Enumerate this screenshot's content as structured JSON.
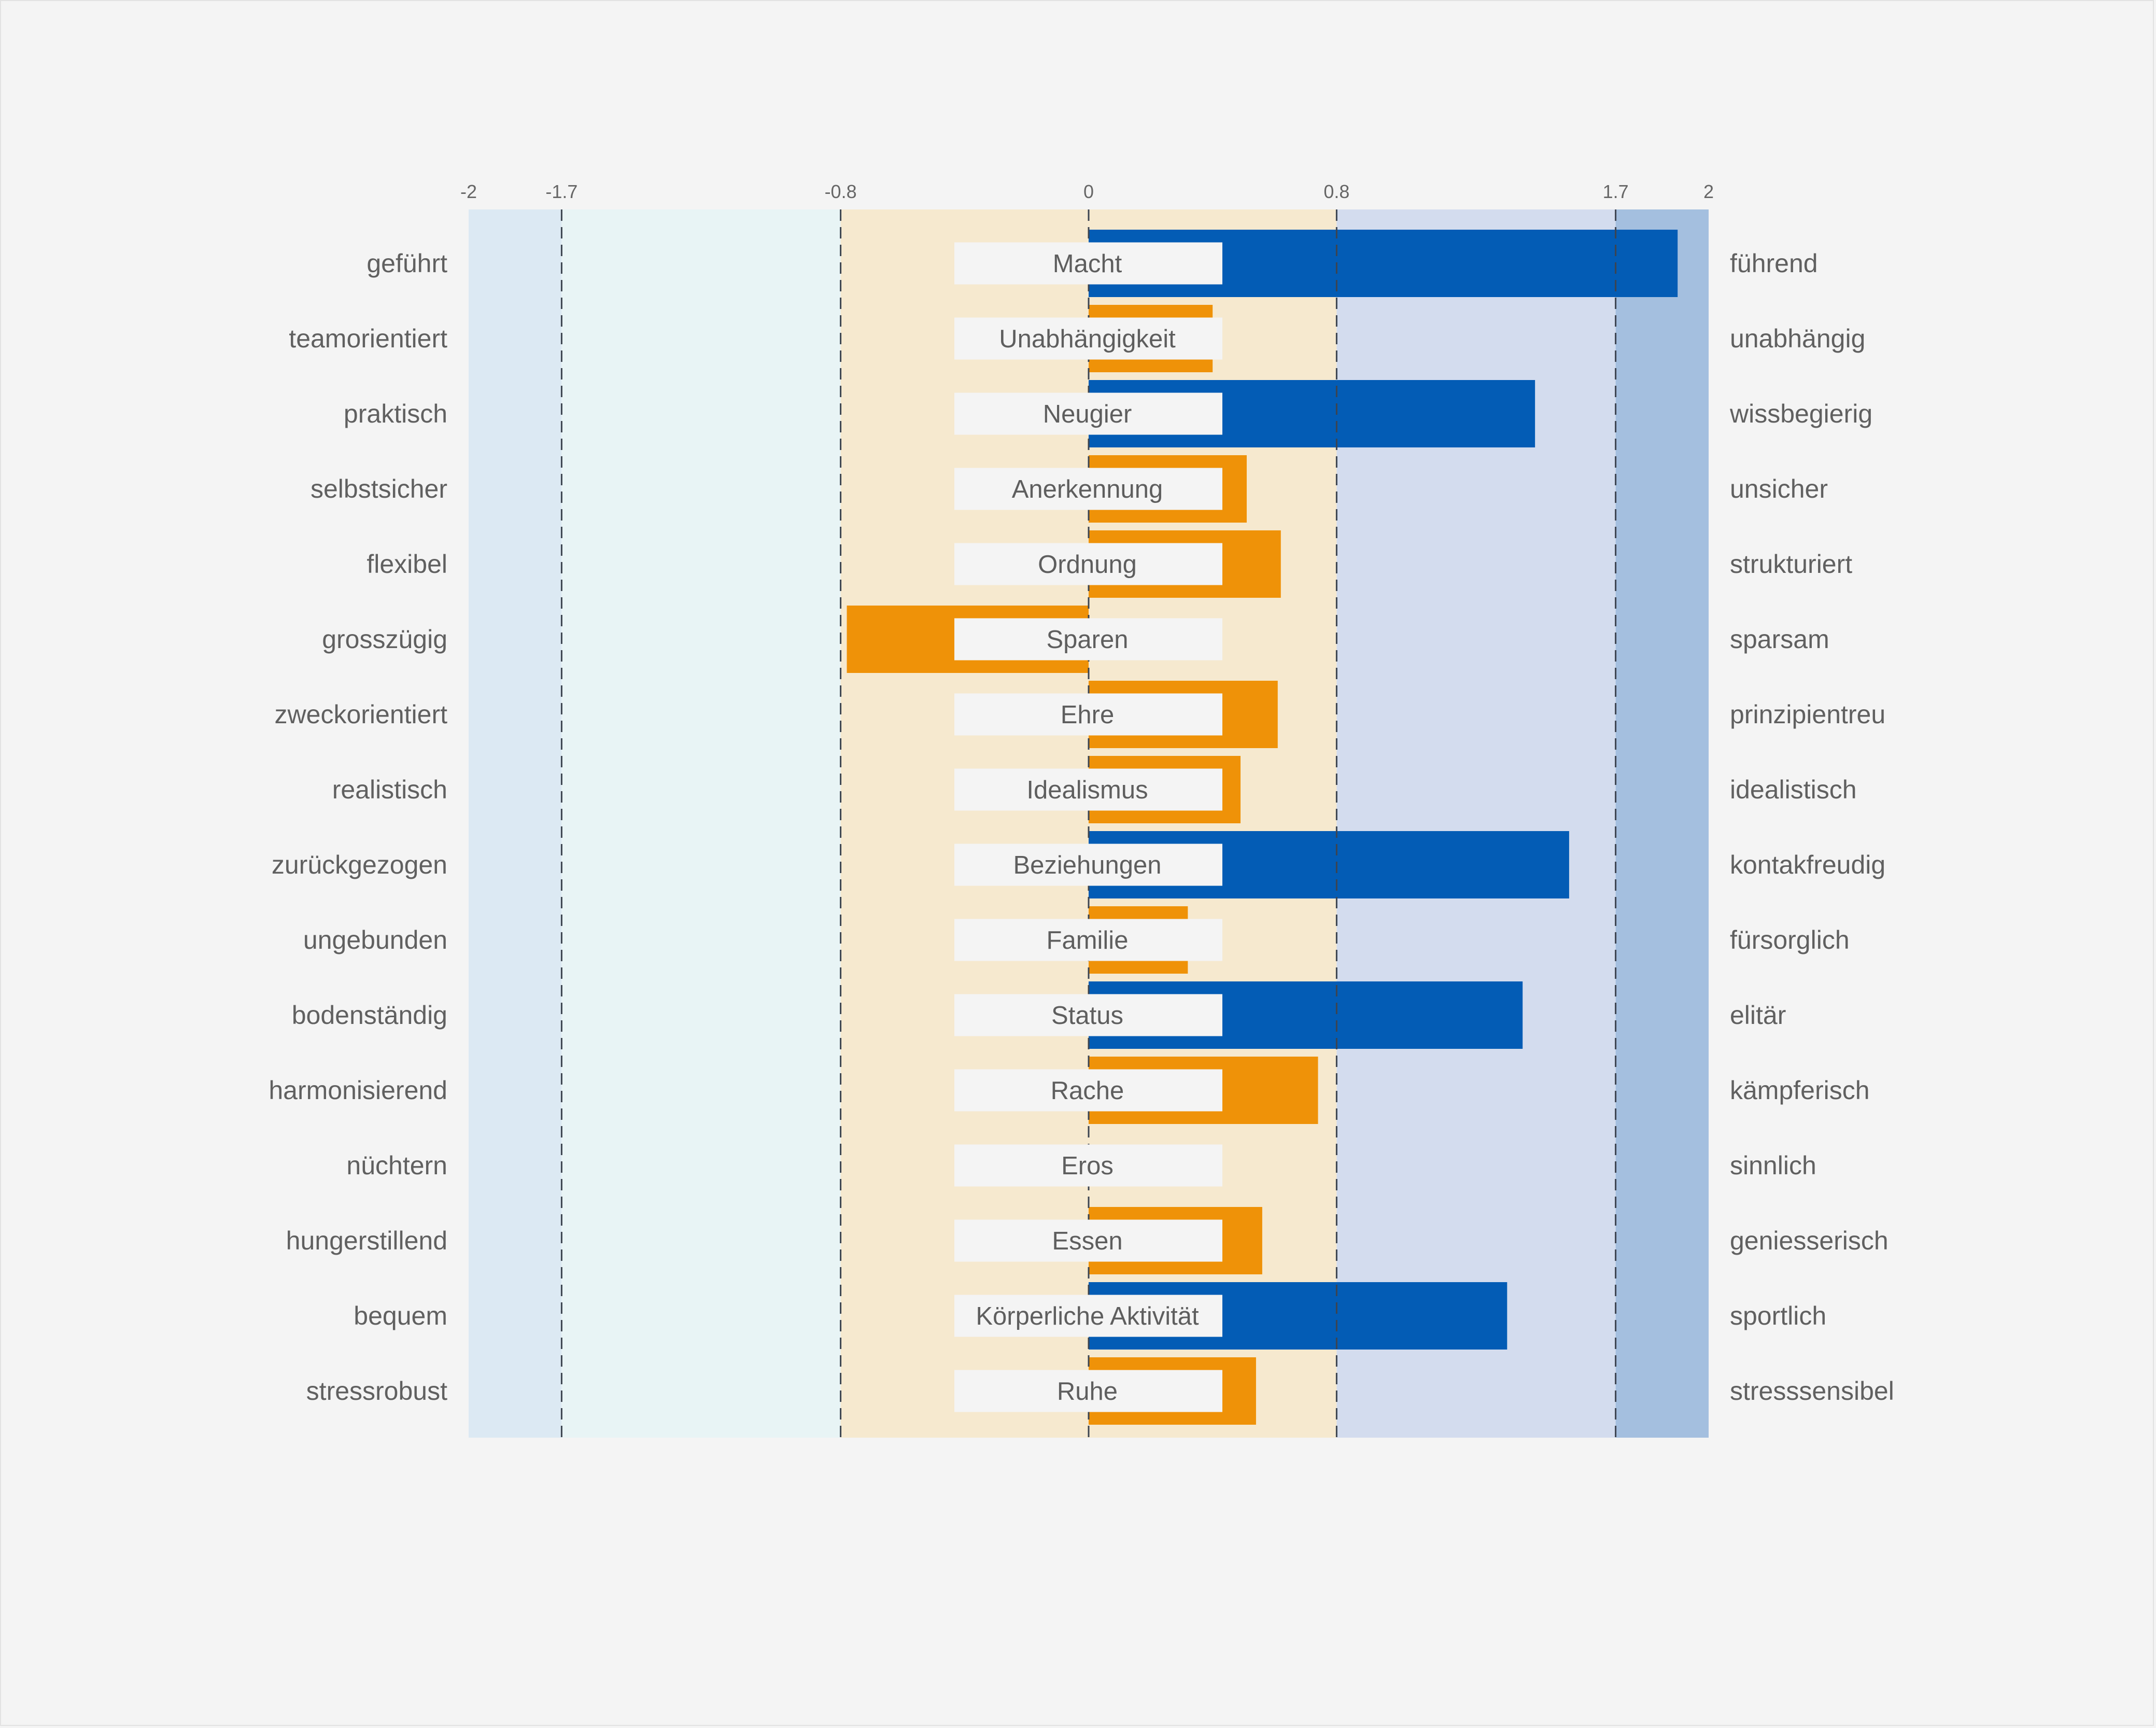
{
  "chart_data": {
    "type": "bar",
    "orientation": "horizontal",
    "title": "",
    "xlabel": "",
    "ylabel": "",
    "xlim": [
      -2,
      2
    ],
    "x_ticks": [
      {
        "value": -2,
        "label": "-2"
      },
      {
        "value": -1.7,
        "label": "-1.7"
      },
      {
        "value": -0.8,
        "label": "-0.8"
      },
      {
        "value": 0,
        "label": "0"
      },
      {
        "value": 0.8,
        "label": "0.8"
      },
      {
        "value": 1.7,
        "label": "1.7"
      },
      {
        "value": 2,
        "label": "2"
      }
    ],
    "dashed_lines_at": [
      -1.7,
      -0.8,
      0,
      0.8,
      1.7
    ],
    "bands": [
      {
        "from": -2,
        "to": -1.7,
        "color": "#dce9f3"
      },
      {
        "from": -1.7,
        "to": -0.8,
        "color": "#e8f4f5"
      },
      {
        "from": -0.8,
        "to": 0.8,
        "color": "#f6e9cf"
      },
      {
        "from": 0.8,
        "to": 1.7,
        "color": "#d3dcee"
      },
      {
        "from": 1.7,
        "to": 2,
        "color": "#a4bfdf"
      }
    ],
    "highlight_threshold": 0.8,
    "colors": {
      "strong": "#035cb5",
      "normal": "#ef9208",
      "label_box": "#f4f4f4",
      "text": "#606060"
    },
    "rows": [
      {
        "category": "Macht",
        "left": "geführt",
        "right": "führend",
        "value": 1.9
      },
      {
        "category": "Unabhängigkeit",
        "left": "teamorientiert",
        "right": "unabhängig",
        "value": 0.4
      },
      {
        "category": "Neugier",
        "left": "praktisch",
        "right": "wissbegierig",
        "value": 1.44
      },
      {
        "category": "Anerkennung",
        "left": "selbstsicher",
        "right": "unsicher",
        "value": 0.51
      },
      {
        "category": "Ordnung",
        "left": "flexibel",
        "right": "strukturiert",
        "value": 0.62
      },
      {
        "category": "Sparen",
        "left": "grosszügig",
        "right": "sparsam",
        "value": -0.78
      },
      {
        "category": "Ehre",
        "left": "zweckorientiert",
        "right": "prinzipientreu",
        "value": 0.61
      },
      {
        "category": "Idealismus",
        "left": "realistisch",
        "right": "idealistisch",
        "value": 0.49
      },
      {
        "category": "Beziehungen",
        "left": "zurückgezogen",
        "right": "kontakfreudig",
        "value": 1.55
      },
      {
        "category": "Familie",
        "left": "ungebunden",
        "right": "fürsorglich",
        "value": 0.32
      },
      {
        "category": "Status",
        "left": "bodenständig",
        "right": "elitär",
        "value": 1.4
      },
      {
        "category": "Rache",
        "left": "harmonisierend",
        "right": "kämpferisch",
        "value": 0.74
      },
      {
        "category": "Eros",
        "left": "nüchtern",
        "right": "sinnlich",
        "value": 0
      },
      {
        "category": "Essen",
        "left": "hungerstillend",
        "right": "geniesserisch",
        "value": 0.56
      },
      {
        "category": "Körperliche Aktivität",
        "left": "bequem",
        "right": "sportlich",
        "value": 1.35
      },
      {
        "category": "Ruhe",
        "left": "stressrobust",
        "right": "stresssensibel",
        "value": 0.54
      }
    ]
  }
}
